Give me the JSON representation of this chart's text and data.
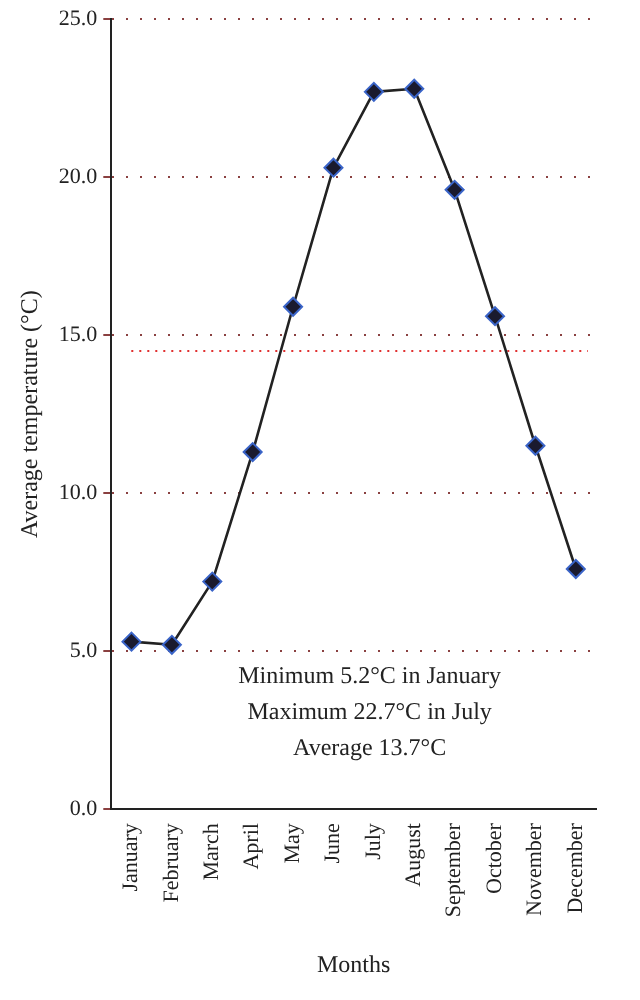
{
  "chart_data": {
    "type": "line",
    "xlabel": "Months",
    "ylabel": "Average temperature (°C)",
    "categories": [
      "January",
      "February",
      "March",
      "April",
      "May",
      "June",
      "July",
      "August",
      "September",
      "October",
      "November",
      "December"
    ],
    "series": [
      {
        "color": "#1a1a2e",
        "values": [
          5.3,
          5.2,
          7.2,
          11.3,
          15.9,
          20.3,
          22.7,
          22.8,
          19.6,
          15.6,
          11.5,
          7.6
        ]
      }
    ],
    "ylim": [
      0,
      25
    ],
    "yticks": [
      {
        "value": 0,
        "label": "0.0"
      },
      {
        "value": 5,
        "label": "5.0"
      },
      {
        "value": 10,
        "label": "10.0"
      },
      {
        "value": 15,
        "label": "15.0"
      },
      {
        "value": 20,
        "label": "20.0"
      },
      {
        "value": 25,
        "label": "25.0"
      }
    ],
    "grid": "y",
    "legend": false,
    "marker": "diamond",
    "line_style": "solid",
    "ref_lines": [
      {
        "axis": "y",
        "value": 14.5,
        "label": null,
        "color": "#e03030",
        "line_style": "dotted"
      }
    ],
    "annotations": [
      "Minimum 5.2°C in January",
      "Maximum 22.7°C in July",
      "Average 13.7°C"
    ]
  }
}
